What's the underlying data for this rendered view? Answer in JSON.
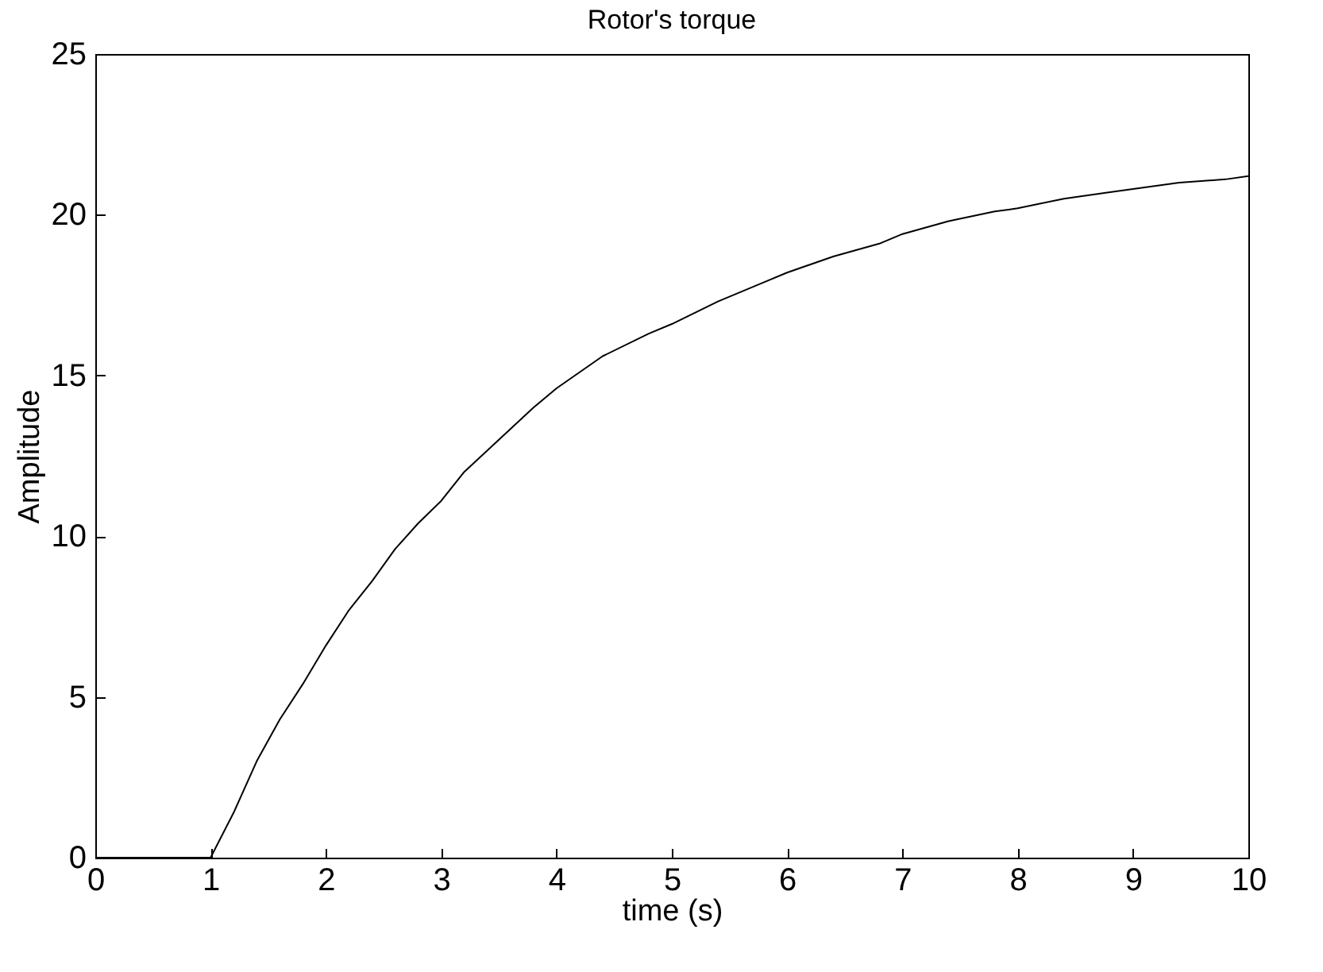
{
  "chart_data": {
    "type": "line",
    "title": "Rotor's torque",
    "xlabel": "time (s)",
    "ylabel": "Amplitude",
    "x": [
      0,
      0.5,
      1,
      1.2,
      1.4,
      1.6,
      1.8,
      2,
      2.2,
      2.4,
      2.6,
      2.8,
      3,
      3.2,
      3.5,
      3.8,
      4,
      4.4,
      4.8,
      5,
      5.4,
      5.8,
      6,
      6.4,
      6.8,
      7,
      7.4,
      7.8,
      8,
      8.4,
      8.8,
      9,
      9.4,
      9.8,
      10
    ],
    "series": [
      {
        "color": "#000000",
        "values": [
          0,
          0,
          0,
          1.4,
          3.0,
          4.3,
          5.4,
          6.6,
          7.7,
          8.6,
          9.6,
          10.4,
          11.1,
          12.0,
          13.0,
          14.0,
          14.6,
          15.6,
          16.3,
          16.6,
          17.3,
          17.9,
          18.2,
          18.7,
          19.1,
          19.4,
          19.8,
          20.1,
          20.2,
          20.5,
          20.7,
          20.8,
          21.0,
          21.1,
          21.2
        ]
      }
    ],
    "xlim": [
      0,
      10
    ],
    "xticks": [
      0,
      1,
      2,
      3,
      4,
      5,
      6,
      7,
      8,
      9,
      10
    ],
    "ylim": [
      0,
      25
    ],
    "yticks": [
      0,
      5,
      10,
      15,
      20,
      25
    ],
    "grid": false,
    "marker": "none",
    "line_style": "solid"
  }
}
